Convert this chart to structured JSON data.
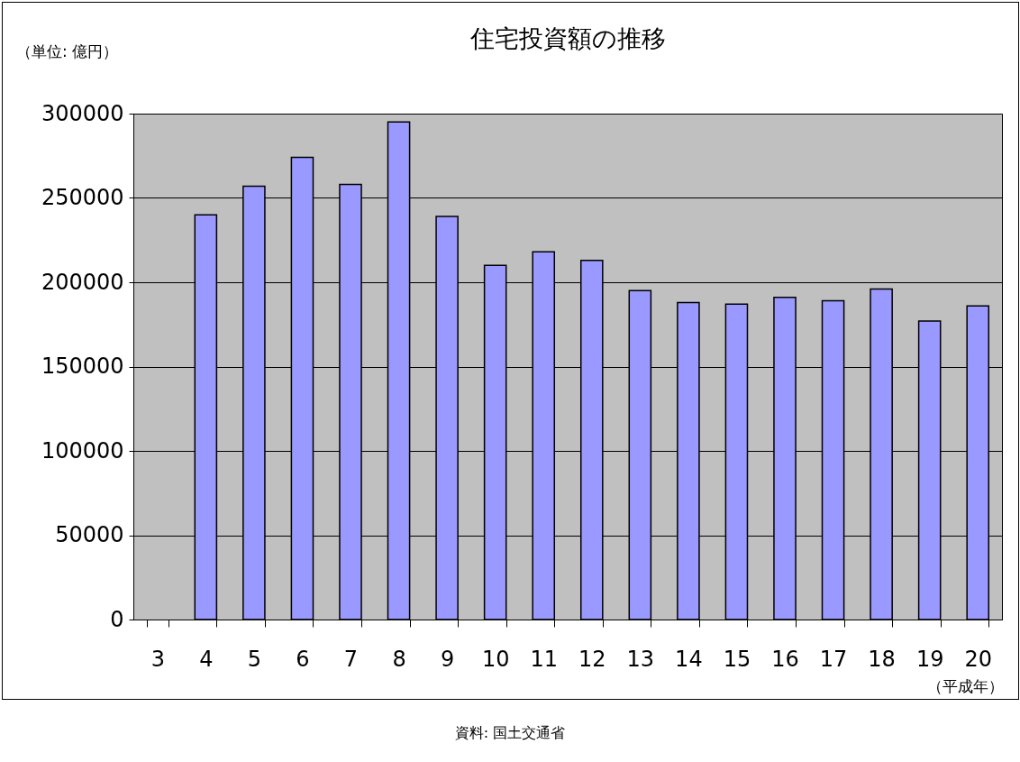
{
  "chart_data": {
    "type": "bar",
    "title": "住宅投資額の推移",
    "categories": [
      "3",
      "4",
      "5",
      "6",
      "7",
      "8",
      "9",
      "10",
      "11",
      "12",
      "13",
      "14",
      "15",
      "16",
      "17",
      "18",
      "19",
      "20"
    ],
    "values": [
      null,
      240000,
      257000,
      274000,
      258000,
      295000,
      239000,
      210000,
      218000,
      213000,
      195000,
      188000,
      187000,
      191000,
      189000,
      196000,
      177000,
      186000
    ],
    "color": "#9999ff",
    "ylim": [
      0,
      300000
    ],
    "yticks": [
      0,
      50000,
      100000,
      150000,
      200000,
      250000,
      300000
    ],
    "grid": "y",
    "annotations": [
      "（単位: 億円）",
      "（平成年）",
      "資料: 国土交通省"
    ]
  }
}
